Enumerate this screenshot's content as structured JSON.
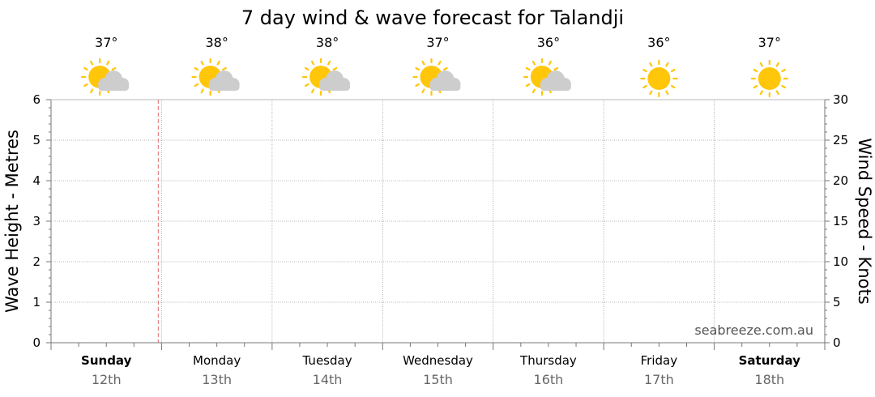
{
  "chart_data": {
    "type": "line",
    "title": "7 day wind & wave forecast for Talandji",
    "ylabel_left": "Wave Height - Metres",
    "ylabel_right": "Wind Speed - Knots",
    "ylim_left": [
      0,
      6
    ],
    "yticks_left": [
      0,
      1,
      2,
      3,
      4,
      5,
      6
    ],
    "ylim_right": [
      0,
      30
    ],
    "yticks_right": [
      0,
      5,
      10,
      15,
      20,
      25,
      30
    ],
    "grid": true,
    "now_marker_day_fraction": 0.97,
    "watermark": "seabreeze.com.au",
    "days": [
      {
        "day": "Sunday",
        "date": "12th",
        "temp": "37°",
        "icon": "partly-cloudy-icon",
        "bold": true
      },
      {
        "day": "Monday",
        "date": "13th",
        "temp": "38°",
        "icon": "partly-cloudy-icon",
        "bold": false
      },
      {
        "day": "Tuesday",
        "date": "14th",
        "temp": "38°",
        "icon": "partly-cloudy-icon",
        "bold": false
      },
      {
        "day": "Wednesday",
        "date": "15th",
        "temp": "37°",
        "icon": "partly-cloudy-icon",
        "bold": false
      },
      {
        "day": "Thursday",
        "date": "16th",
        "temp": "36°",
        "icon": "partly-cloudy-icon",
        "bold": false
      },
      {
        "day": "Friday",
        "date": "17th",
        "temp": "36°",
        "icon": "sunny-icon",
        "bold": false
      },
      {
        "day": "Saturday",
        "date": "18th",
        "temp": "37°",
        "icon": "sunny-icon",
        "bold": true
      }
    ],
    "series": []
  },
  "colors": {
    "sun": "#FFC60A",
    "cloud": "#CDCDCD",
    "grid": "#9a9a9a",
    "now_marker": "#E07070",
    "date_text": "#666666",
    "watermark": "#555555"
  }
}
